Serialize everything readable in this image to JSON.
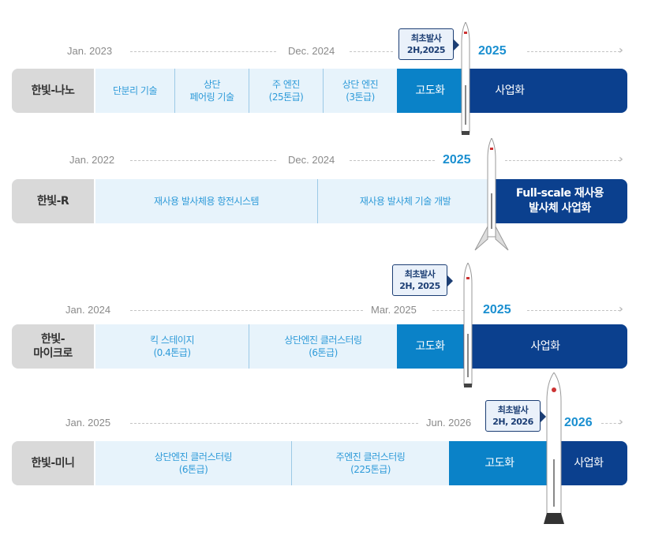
{
  "rows": [
    {
      "name": "한빛-나노",
      "dates": [
        "Jan. 2023",
        "Dec. 2024"
      ],
      "year": "2025",
      "milestone": {
        "line1": "최초발사",
        "line2": "2H,2025"
      },
      "phases": [
        "단분리 기술",
        "상단\n페어링 기술",
        "주 엔진\n(25톤급)",
        "상단 엔진\n(3톤급)"
      ],
      "advance": "고도화",
      "commercial": "사업화"
    },
    {
      "name": "한빛-R",
      "dates": [
        "Jan. 2022",
        "Dec. 2024"
      ],
      "year": "2025",
      "phases": [
        "재사용 발사체용 항전시스템",
        "재사용 발사체 기술 개발"
      ],
      "commercial": "Full-scale 재사용\n발사체 사업화"
    },
    {
      "name": "한빛-\n마이크로",
      "dates": [
        "Jan. 2024",
        "Mar. 2025"
      ],
      "year": "2025",
      "milestone": {
        "line1": "최초발사",
        "line2": "2H, 2025"
      },
      "phases": [
        "킥 스테이지\n(0.4톤급)",
        "상단엔진 클러스터링\n(6톤급)"
      ],
      "advance": "고도화",
      "commercial": "사업화"
    },
    {
      "name": "한빛-미니",
      "dates": [
        "Jan. 2025",
        "Jun. 2026"
      ],
      "year": "2026",
      "milestone": {
        "line1": "최초발사",
        "line2": "2H, 2026"
      },
      "phases": [
        "상단엔진 클러스터링\n(6톤급)",
        "주엔진 클러스터링\n(225톤급)"
      ],
      "advance": "고도화",
      "commercial": "사업화"
    }
  ],
  "colors": {
    "label_bg": "#d9d9d9",
    "phase_bg": "#e7f3fb",
    "phase_text": "#2f9bd9",
    "advance": "#0a82c8",
    "commercial": "#0b408e",
    "year": "#1a8fd0"
  }
}
